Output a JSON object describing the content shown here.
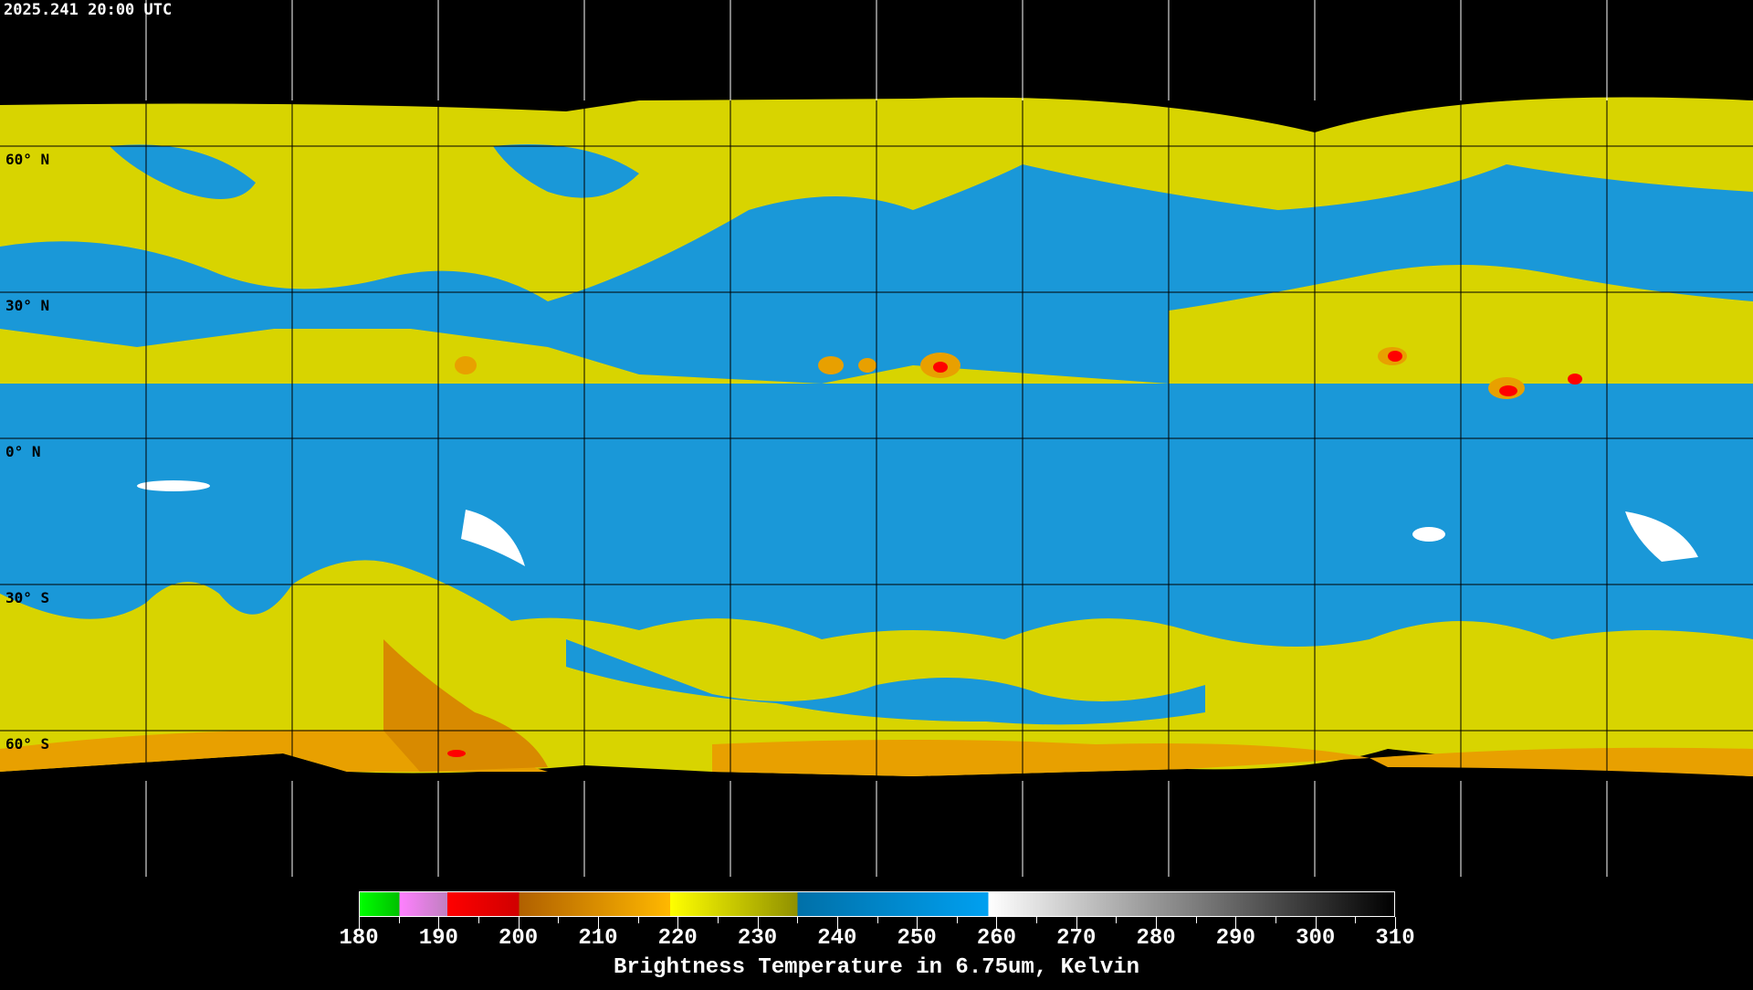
{
  "title": "2025.241 20:00 UTC",
  "map": {
    "projection": "equirectangular",
    "grid_spacing_degrees": 30,
    "colors": {
      "background": "#000000",
      "cold_high": "#d8d400",
      "moist_mid": "#e8a000",
      "dry": "#1a98d8",
      "very_dry": "#ffffff",
      "deep_convection": "#ff0000",
      "grid": "#ffffff",
      "coastline_on_data": "#000000"
    },
    "lat_labels": [
      "60° N",
      "30° N",
      "0° N",
      "30° S",
      "60° S"
    ]
  },
  "colorbar": {
    "title": "Brightness Temperature in 6.75um, Kelvin",
    "min": 180,
    "max": 310,
    "ticks": [
      "180",
      "190",
      "200",
      "210",
      "220",
      "230",
      "240",
      "250",
      "260",
      "270",
      "280",
      "290",
      "300",
      "310"
    ],
    "segments": [
      {
        "from": 180,
        "to": 185,
        "start": "#00ff00",
        "end": "#00c000"
      },
      {
        "from": 185,
        "to": 191,
        "start": "#ff80ff",
        "end": "#c080c0"
      },
      {
        "from": 191,
        "to": 200,
        "start": "#ff0000",
        "end": "#d00000"
      },
      {
        "from": 200,
        "to": 219,
        "start": "#b06000",
        "end": "#ffb800"
      },
      {
        "from": 219,
        "to": 235,
        "start": "#ffff00",
        "end": "#909000"
      },
      {
        "from": 235,
        "to": 259,
        "start": "#0070a8",
        "end": "#00a0f0"
      },
      {
        "from": 259,
        "to": 310,
        "start": "#ffffff",
        "end": "#000000"
      }
    ]
  }
}
